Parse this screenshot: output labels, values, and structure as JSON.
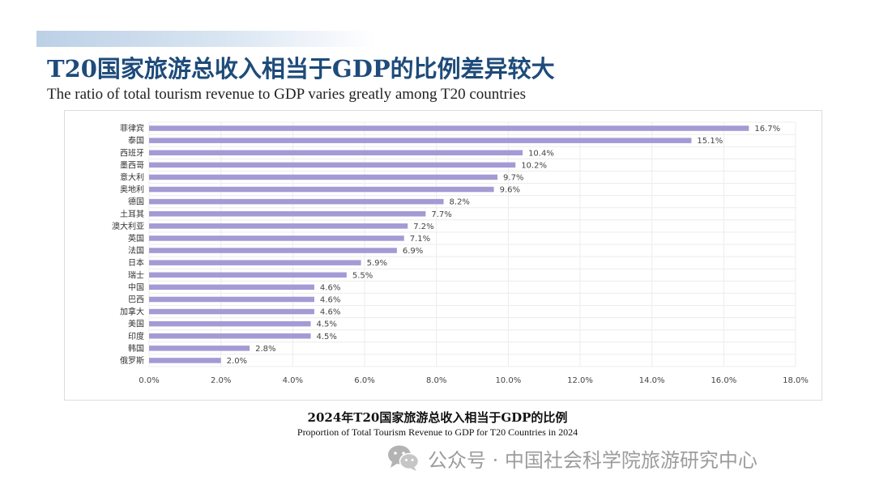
{
  "header": {
    "title_cn": "T20国家旅游总收入相当于GDP的比例差异较大",
    "title_en": "The ratio of total tourism revenue to GDP varies greatly among T20 countries"
  },
  "caption": {
    "cn": "2024年T20国家旅游总收入相当于GDP的比例",
    "en": "Proportion of Total Tourism Revenue to GDP for T20 Countries in 2024"
  },
  "watermark": {
    "text": "公众号 · 中国社会科学院旅游研究中心"
  },
  "colors": {
    "bar": "#a49ad4",
    "grid": "#ececec",
    "axis_text": "#444444",
    "title": "#1e4b7a"
  },
  "chart_data": {
    "type": "bar",
    "orientation": "horizontal",
    "categories": [
      "菲律宾",
      "泰国",
      "西班牙",
      "墨西哥",
      "意大利",
      "奥地利",
      "德国",
      "土耳其",
      "澳大利亚",
      "英国",
      "法国",
      "日本",
      "瑞士",
      "中国",
      "巴西",
      "加拿大",
      "美国",
      "印度",
      "韩国",
      "俄罗斯"
    ],
    "values": [
      16.7,
      15.1,
      10.4,
      10.2,
      9.7,
      9.6,
      8.2,
      7.7,
      7.2,
      7.1,
      6.9,
      5.9,
      5.5,
      4.6,
      4.6,
      4.6,
      4.5,
      4.5,
      2.8,
      2.0
    ],
    "labels": [
      "16.7%",
      "15.1%",
      "10.4%",
      "10.2%",
      "9.7%",
      "9.6%",
      "8.2%",
      "7.7%",
      "7.2%",
      "7.1%",
      "6.9%",
      "5.9%",
      "5.5%",
      "4.6%",
      "4.6%",
      "4.6%",
      "4.5%",
      "4.5%",
      "2.8%",
      "2.0%"
    ],
    "xlim": [
      0,
      18
    ],
    "xticks": [
      0,
      2,
      4,
      6,
      8,
      10,
      12,
      14,
      16,
      18
    ],
    "xtick_labels": [
      "0.0%",
      "2.0%",
      "4.0%",
      "6.0%",
      "8.0%",
      "10.0%",
      "12.0%",
      "14.0%",
      "16.0%",
      "18.0%"
    ],
    "grid": true,
    "title": "2024年T20国家旅游总收入相当于GDP的比例",
    "xlabel": "",
    "ylabel": ""
  }
}
